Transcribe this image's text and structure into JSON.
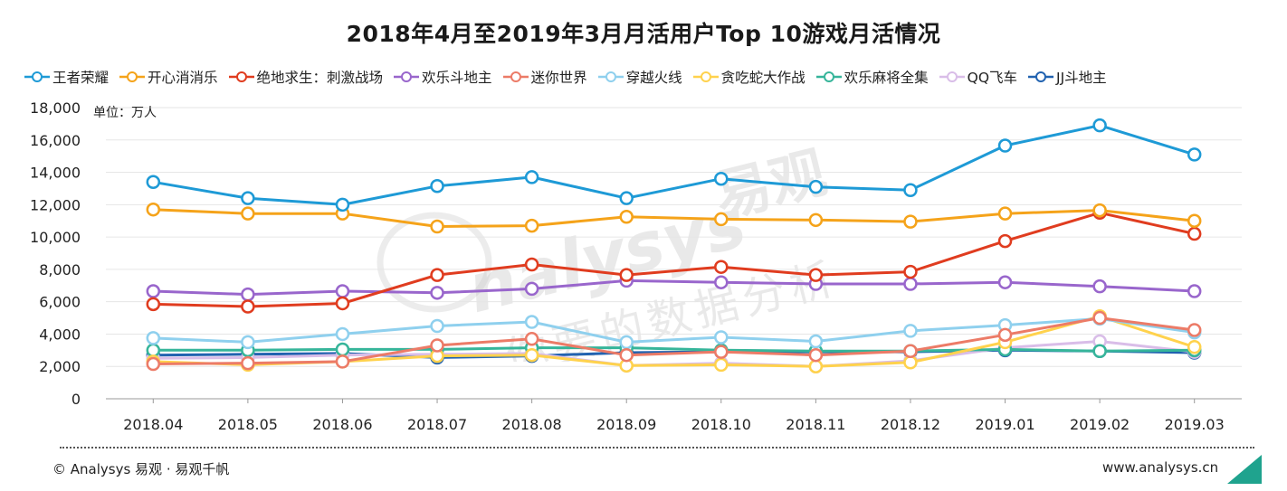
{
  "chart_data": {
    "type": "line",
    "title": "2018年4月至2019年3月月活用户Top 10游戏月活情况",
    "unit_label": "单位：万人",
    "categories": [
      "2018.04",
      "2018.05",
      "2018.06",
      "2018.07",
      "2018.08",
      "2018.09",
      "2018.10",
      "2018.11",
      "2018.12",
      "2019.01",
      "2019.02",
      "2019.03"
    ],
    "ylim": [
      0,
      18000
    ],
    "yticks": [
      0,
      2000,
      4000,
      6000,
      8000,
      10000,
      12000,
      14000,
      16000,
      18000
    ],
    "ytick_labels": [
      "0",
      "2,000",
      "4,000",
      "6,000",
      "8,000",
      "10,000",
      "12,000",
      "14,000",
      "16,000",
      "18,000"
    ],
    "grid": "horizontal",
    "legend_position": "top",
    "series": [
      {
        "name": "王者荣耀",
        "color": "#1e9ad6",
        "values": [
          13400,
          12400,
          12000,
          13150,
          13700,
          12400,
          13600,
          13100,
          12900,
          15650,
          16900,
          15100
        ]
      },
      {
        "name": "开心消消乐",
        "color": "#f5a31a",
        "values": [
          11700,
          11450,
          11450,
          10650,
          10700,
          11250,
          11100,
          11050,
          10950,
          11450,
          11650,
          11000
        ]
      },
      {
        "name": "绝地求生：刺激战场",
        "color": "#e03c1f",
        "values": [
          5850,
          5700,
          5900,
          7650,
          8300,
          7650,
          8150,
          7650,
          7850,
          9750,
          11500,
          10200
        ]
      },
      {
        "name": "欢乐斗地主",
        "color": "#9966cc",
        "values": [
          6650,
          6450,
          6650,
          6550,
          6800,
          7300,
          7200,
          7100,
          7100,
          7200,
          6950,
          6650
        ]
      },
      {
        "name": "迷你世界",
        "color": "#ec7b67",
        "values": [
          2150,
          2200,
          2300,
          3300,
          3700,
          2700,
          2900,
          2700,
          2950,
          3950,
          5000,
          4250
        ]
      },
      {
        "name": "穿越火线",
        "color": "#8fd0ee",
        "values": [
          3750,
          3500,
          4000,
          4500,
          4750,
          3500,
          3800,
          3550,
          4200,
          4550,
          4950,
          4100
        ]
      },
      {
        "name": "贪吃蛇大作战",
        "color": "#ffd24d",
        "values": [
          2300,
          2100,
          2300,
          2650,
          2700,
          2050,
          2100,
          2000,
          2250,
          3500,
          5100,
          3200
        ]
      },
      {
        "name": "欢乐麻将全集",
        "color": "#36b59a",
        "values": [
          3000,
          3000,
          3050,
          3050,
          3150,
          3150,
          3000,
          2950,
          2950,
          3050,
          2950,
          3000
        ]
      },
      {
        "name": "QQ飞车",
        "color": "#d9bde8",
        "values": [
          2500,
          2550,
          2700,
          2750,
          2800,
          2050,
          2200,
          2000,
          2350,
          3150,
          3550,
          2900
        ]
      },
      {
        "name": "JJ斗地主",
        "color": "#2162b0",
        "values": [
          2700,
          2750,
          2800,
          2550,
          2650,
          2850,
          2900,
          2900,
          2900,
          3000,
          2950,
          2850
        ]
      }
    ]
  },
  "watermark": {
    "brand_latin": "nalysys",
    "brand_cn": "易观",
    "slogan": "你要的数据分析"
  },
  "footer": {
    "left": "© Analysys 易观 · 易观千帆",
    "right": "www.analysys.cn"
  },
  "colors": {
    "gridline": "#e6e6e6",
    "axis": "#999999",
    "corner_accent": "#1fa38e"
  }
}
